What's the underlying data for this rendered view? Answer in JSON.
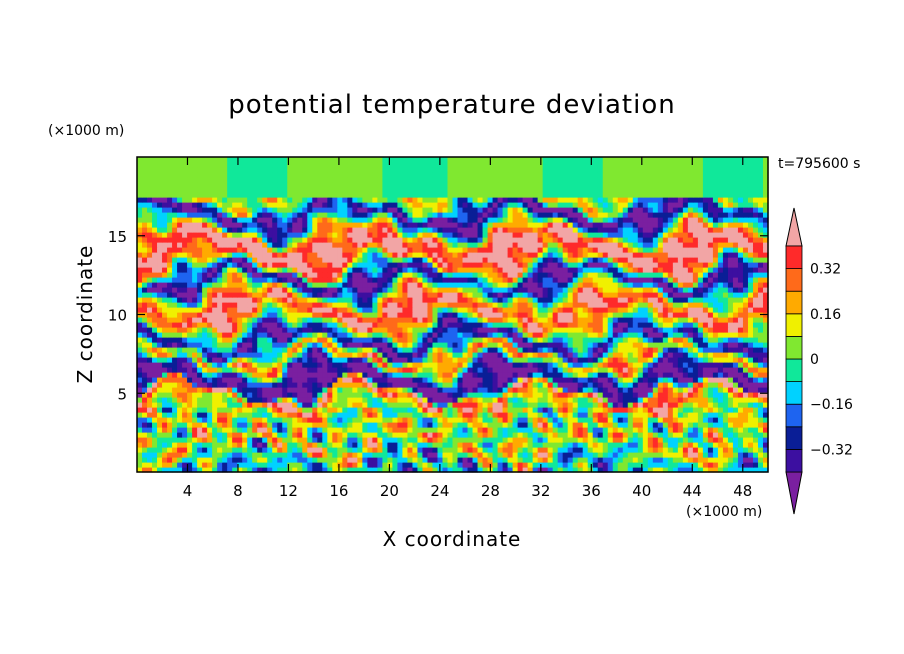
{
  "chart_data": {
    "type": "heatmap",
    "title": "potential temperature deviation",
    "xlabel": "X coordinate",
    "ylabel": "Z coordinate",
    "x_unit": "(×1000 m)",
    "y_unit": "(×1000 m)",
    "time_label": "t=795600 s",
    "xlim": [
      0,
      50
    ],
    "ylim": [
      0,
      20
    ],
    "x_ticks": [
      "4",
      "8",
      "12",
      "16",
      "20",
      "24",
      "28",
      "32",
      "36",
      "40",
      "44",
      "48"
    ],
    "y_ticks": [
      "5",
      "10",
      "15"
    ],
    "colorbar": {
      "levels": [
        -0.48,
        -0.4,
        -0.32,
        -0.24,
        -0.16,
        -0.08,
        0,
        0.08,
        0.16,
        0.24,
        0.32,
        0.4,
        0.48
      ],
      "tick_labels": [
        "0.32",
        "0.16",
        "0",
        "−0.16",
        "−0.32"
      ],
      "colors": [
        "#7a1fa0",
        "#3c0fa0",
        "#0a1e96",
        "#1e64f0",
        "#00d2ff",
        "#10e89a",
        "#80e830",
        "#f0f000",
        "#ffaa00",
        "#ff6a1a",
        "#ff2a2a",
        "#f2a5a5"
      ]
    },
    "bands": [
      {
        "z": 0.8,
        "v": -0.1
      },
      {
        "z": 1.8,
        "v": 0.2
      },
      {
        "z": 2.8,
        "v": 0.0
      },
      {
        "z": 3.6,
        "v": 0.05
      },
      {
        "z": 4.3,
        "v": 0.1
      },
      {
        "z": 4.9,
        "v": 0.44
      },
      {
        "z": 5.4,
        "v": -0.42
      },
      {
        "z": 6.3,
        "v": -0.4
      },
      {
        "z": 7.3,
        "v": 0.3
      },
      {
        "z": 8.3,
        "v": -0.44
      },
      {
        "z": 9.3,
        "v": 0.05
      },
      {
        "z": 10.3,
        "v": 0.45
      },
      {
        "z": 11.3,
        "v": 0.1
      },
      {
        "z": 12.3,
        "v": -0.44
      },
      {
        "z": 13.4,
        "v": 0.35
      },
      {
        "z": 14.6,
        "v": 0.45
      },
      {
        "z": 15.6,
        "v": -0.1
      },
      {
        "z": 16.5,
        "v": -0.46
      },
      {
        "z": 17.3,
        "v": 0.1
      },
      {
        "z": 18.2,
        "v": 0.08
      },
      {
        "z": 19.2,
        "v": 0.02
      }
    ]
  }
}
